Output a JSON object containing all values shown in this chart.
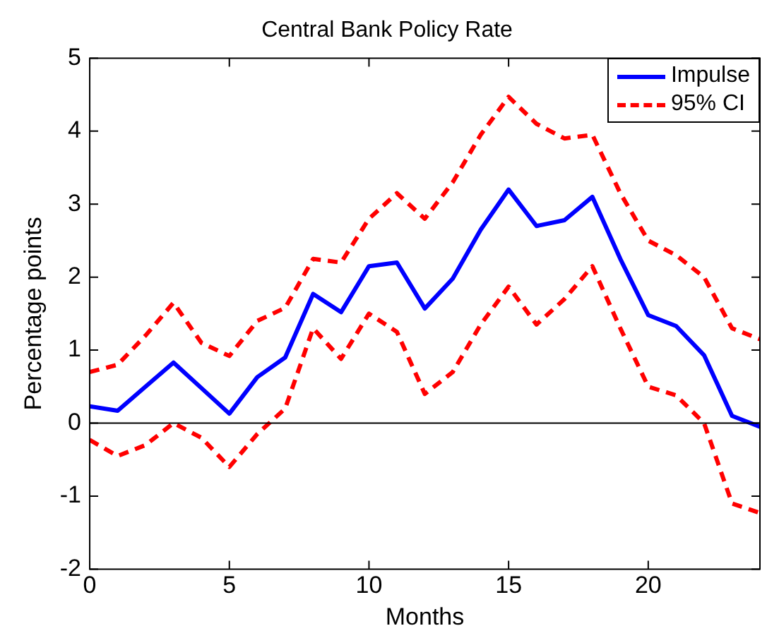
{
  "chart_data": {
    "type": "line",
    "title": "Central Bank Policy Rate",
    "xlabel": "Months",
    "ylabel": "Percentage points",
    "x": [
      0,
      1,
      2,
      3,
      4,
      5,
      6,
      7,
      8,
      9,
      10,
      11,
      12,
      13,
      14,
      15,
      16,
      17,
      18,
      19,
      20,
      21,
      22,
      23,
      24
    ],
    "series": [
      {
        "name": "Impulse",
        "color": "#0000ff",
        "line_style": "solid",
        "values": [
          0.23,
          0.17,
          0.5,
          0.83,
          0.48,
          0.13,
          0.63,
          0.9,
          1.77,
          1.52,
          2.15,
          2.2,
          1.57,
          1.98,
          2.65,
          3.2,
          2.7,
          2.78,
          3.1,
          2.25,
          1.48,
          1.33,
          0.93,
          0.1,
          -0.05
        ]
      },
      {
        "name": "95% CI",
        "color": "#ff0000",
        "line_style": "dashed",
        "values": [
          0.7,
          0.8,
          1.2,
          1.65,
          1.1,
          0.92,
          1.4,
          1.58,
          2.25,
          2.2,
          2.8,
          3.15,
          2.8,
          3.3,
          3.95,
          4.47,
          4.1,
          3.9,
          3.95,
          3.15,
          2.5,
          2.3,
          2.0,
          1.3,
          1.15
        ]
      },
      {
        "color": "#ff0000",
        "line_style": "dashed",
        "values": [
          -0.23,
          -0.45,
          -0.3,
          0.0,
          -0.2,
          -0.6,
          -0.15,
          0.2,
          1.3,
          0.88,
          1.5,
          1.25,
          0.4,
          0.7,
          1.35,
          1.87,
          1.35,
          1.7,
          2.15,
          1.3,
          0.5,
          0.38,
          0.0,
          -1.1,
          -1.23
        ]
      }
    ],
    "xlim": [
      0,
      24
    ],
    "xticks": [
      0,
      5,
      10,
      15,
      20
    ],
    "ylim": [
      -2,
      5
    ],
    "yticks": [
      -2,
      -1,
      0,
      1,
      2,
      3,
      4,
      5
    ],
    "ref_lines": [
      {
        "axis": "y",
        "value": 0,
        "color": "#000000"
      }
    ],
    "grid": false,
    "legend": "top right",
    "marker": "none"
  }
}
